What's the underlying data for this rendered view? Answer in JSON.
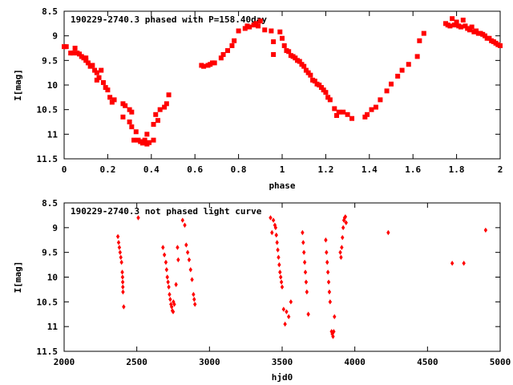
{
  "chart_data": [
    {
      "type": "scatter",
      "title": "190229-2740.3 phased with P=158.40day",
      "xlabel": "phase",
      "ylabel": "I[mag]",
      "xlim": [
        0,
        2
      ],
      "ylim": [
        11.5,
        8.5
      ],
      "y_inverted": true,
      "grid": false,
      "xticks": [
        "0",
        "0.2",
        "0.4",
        "0.6",
        "0.8",
        "1",
        "1.2",
        "1.4",
        "1.6",
        "1.8",
        "2"
      ],
      "yticks": [
        "8.5",
        "9",
        "9.5",
        "10",
        "10.5",
        "11",
        "11.5"
      ],
      "color": "#ff0000",
      "marker": "square",
      "points": [
        [
          0.0,
          9.22
        ],
        [
          0.01,
          9.22
        ],
        [
          0.03,
          9.35
        ],
        [
          0.04,
          9.35
        ],
        [
          0.05,
          9.25
        ],
        [
          0.06,
          9.35
        ],
        [
          0.07,
          9.37
        ],
        [
          0.08,
          9.42
        ],
        [
          0.09,
          9.45
        ],
        [
          0.1,
          9.5
        ],
        [
          0.1,
          9.45
        ],
        [
          0.11,
          9.55
        ],
        [
          0.12,
          9.62
        ],
        [
          0.13,
          9.6
        ],
        [
          0.14,
          9.7
        ],
        [
          0.15,
          9.75
        ],
        [
          0.16,
          9.85
        ],
        [
          0.15,
          9.9
        ],
        [
          0.17,
          9.7
        ],
        [
          0.18,
          9.95
        ],
        [
          0.19,
          10.05
        ],
        [
          0.2,
          10.1
        ],
        [
          0.21,
          10.25
        ],
        [
          0.22,
          10.35
        ],
        [
          0.23,
          10.3
        ],
        [
          0.27,
          10.38
        ],
        [
          0.28,
          10.42
        ],
        [
          0.3,
          10.5
        ],
        [
          0.31,
          10.55
        ],
        [
          0.27,
          10.65
        ],
        [
          0.3,
          10.75
        ],
        [
          0.31,
          10.85
        ],
        [
          0.32,
          11.12
        ],
        [
          0.34,
          11.12
        ],
        [
          0.35,
          11.15
        ],
        [
          0.36,
          11.18
        ],
        [
          0.37,
          11.12
        ],
        [
          0.38,
          11.2
        ],
        [
          0.39,
          11.17
        ],
        [
          0.41,
          11.12
        ],
        [
          0.33,
          10.95
        ],
        [
          0.38,
          11.0
        ],
        [
          0.41,
          10.8
        ],
        [
          0.42,
          10.6
        ],
        [
          0.43,
          10.72
        ],
        [
          0.44,
          10.5
        ],
        [
          0.46,
          10.45
        ],
        [
          0.47,
          10.38
        ],
        [
          0.48,
          10.2
        ],
        [
          0.63,
          9.6
        ],
        [
          0.64,
          9.62
        ],
        [
          0.66,
          9.6
        ],
        [
          0.67,
          9.58
        ],
        [
          0.68,
          9.55
        ],
        [
          0.69,
          9.55
        ],
        [
          0.72,
          9.45
        ],
        [
          0.73,
          9.38
        ],
        [
          0.75,
          9.3
        ],
        [
          0.77,
          9.2
        ],
        [
          0.78,
          9.1
        ],
        [
          0.8,
          8.9
        ],
        [
          0.83,
          8.85
        ],
        [
          0.84,
          8.8
        ],
        [
          0.85,
          8.82
        ],
        [
          0.87,
          8.78
        ],
        [
          0.88,
          8.75
        ],
        [
          0.89,
          8.8
        ],
        [
          0.9,
          8.7
        ],
        [
          0.92,
          8.88
        ],
        [
          0.95,
          8.9
        ],
        [
          0.96,
          9.12
        ],
        [
          0.96,
          9.38
        ],
        [
          0.99,
          8.92
        ],
        [
          1.0,
          9.05
        ],
        [
          1.01,
          9.2
        ],
        [
          1.02,
          9.3
        ],
        [
          1.03,
          9.32
        ],
        [
          1.04,
          9.4
        ],
        [
          1.05,
          9.42
        ],
        [
          1.06,
          9.45
        ],
        [
          1.07,
          9.5
        ],
        [
          1.08,
          9.52
        ],
        [
          1.09,
          9.58
        ],
        [
          1.1,
          9.62
        ],
        [
          1.11,
          9.7
        ],
        [
          1.12,
          9.75
        ],
        [
          1.13,
          9.8
        ],
        [
          1.14,
          9.9
        ],
        [
          1.15,
          9.92
        ],
        [
          1.16,
          9.98
        ],
        [
          1.17,
          10.0
        ],
        [
          1.18,
          10.05
        ],
        [
          1.19,
          10.1
        ],
        [
          1.2,
          10.15
        ],
        [
          1.21,
          10.25
        ],
        [
          1.22,
          10.3
        ],
        [
          1.24,
          10.48
        ],
        [
          1.25,
          10.62
        ],
        [
          1.26,
          10.55
        ],
        [
          1.28,
          10.55
        ],
        [
          1.3,
          10.6
        ],
        [
          1.32,
          10.68
        ],
        [
          1.38,
          10.65
        ],
        [
          1.39,
          10.6
        ],
        [
          1.41,
          10.5
        ],
        [
          1.43,
          10.45
        ],
        [
          1.45,
          10.3
        ],
        [
          1.48,
          10.12
        ],
        [
          1.5,
          9.98
        ],
        [
          1.53,
          9.82
        ],
        [
          1.55,
          9.7
        ],
        [
          1.58,
          9.58
        ],
        [
          1.62,
          9.42
        ],
        [
          1.63,
          9.1
        ],
        [
          1.65,
          8.95
        ],
        [
          1.75,
          8.75
        ],
        [
          1.76,
          8.78
        ],
        [
          1.77,
          8.8
        ],
        [
          1.78,
          8.65
        ],
        [
          1.79,
          8.78
        ],
        [
          1.8,
          8.72
        ],
        [
          1.81,
          8.8
        ],
        [
          1.82,
          8.82
        ],
        [
          1.83,
          8.68
        ],
        [
          1.84,
          8.8
        ],
        [
          1.85,
          8.85
        ],
        [
          1.86,
          8.88
        ],
        [
          1.87,
          8.82
        ],
        [
          1.88,
          8.92
        ],
        [
          1.89,
          8.9
        ],
        [
          1.9,
          8.95
        ],
        [
          1.91,
          8.95
        ],
        [
          1.92,
          8.97
        ],
        [
          1.93,
          9.0
        ],
        [
          1.94,
          9.05
        ],
        [
          1.95,
          9.05
        ],
        [
          1.96,
          9.1
        ],
        [
          1.97,
          9.12
        ],
        [
          1.98,
          9.15
        ],
        [
          1.99,
          9.18
        ],
        [
          2.0,
          9.2
        ]
      ]
    },
    {
      "type": "scatter",
      "title": "190229-2740.3 not phased light curve",
      "xlabel": "hjd0",
      "ylabel": "I[mag]",
      "xlim": [
        2000,
        5000
      ],
      "ylim": [
        11.5,
        8.5
      ],
      "y_inverted": true,
      "grid": false,
      "xticks": [
        "2000",
        "2500",
        "3000",
        "3500",
        "4000",
        "4500",
        "5000"
      ],
      "yticks": [
        "8.5",
        "9",
        "9.5",
        "10",
        "10.5",
        "11",
        "11.5"
      ],
      "color": "#ff0000",
      "marker": "diamond",
      "points": [
        [
          2370,
          9.18
        ],
        [
          2375,
          9.3
        ],
        [
          2380,
          9.4
        ],
        [
          2385,
          9.5
        ],
        [
          2390,
          9.6
        ],
        [
          2395,
          9.7
        ],
        [
          2400,
          9.9
        ],
        [
          2402,
          10.0
        ],
        [
          2403,
          10.1
        ],
        [
          2404,
          10.2
        ],
        [
          2405,
          10.3
        ],
        [
          2410,
          10.6
        ],
        [
          2510,
          8.8
        ],
        [
          2680,
          9.4
        ],
        [
          2690,
          9.55
        ],
        [
          2700,
          9.7
        ],
        [
          2705,
          9.85
        ],
        [
          2710,
          10.0
        ],
        [
          2715,
          10.1
        ],
        [
          2720,
          10.2
        ],
        [
          2725,
          10.35
        ],
        [
          2730,
          10.45
        ],
        [
          2735,
          10.55
        ],
        [
          2740,
          10.6
        ],
        [
          2745,
          10.68
        ],
        [
          2750,
          10.7
        ],
        [
          2752,
          10.5
        ],
        [
          2758,
          10.55
        ],
        [
          2770,
          10.15
        ],
        [
          2780,
          9.4
        ],
        [
          2785,
          9.65
        ],
        [
          2815,
          8.85
        ],
        [
          2830,
          8.95
        ],
        [
          2840,
          9.35
        ],
        [
          2850,
          9.5
        ],
        [
          2860,
          9.65
        ],
        [
          2870,
          9.85
        ],
        [
          2880,
          10.05
        ],
        [
          2890,
          10.35
        ],
        [
          2895,
          10.45
        ],
        [
          2900,
          10.55
        ],
        [
          3420,
          8.8
        ],
        [
          3430,
          9.1
        ],
        [
          3440,
          8.85
        ],
        [
          3450,
          8.95
        ],
        [
          3455,
          9.0
        ],
        [
          3460,
          9.15
        ],
        [
          3465,
          9.3
        ],
        [
          3470,
          9.45
        ],
        [
          3475,
          9.6
        ],
        [
          3480,
          9.75
        ],
        [
          3485,
          9.9
        ],
        [
          3490,
          10.0
        ],
        [
          3495,
          10.1
        ],
        [
          3500,
          10.2
        ],
        [
          3510,
          10.65
        ],
        [
          3520,
          10.95
        ],
        [
          3530,
          10.7
        ],
        [
          3545,
          10.8
        ],
        [
          3560,
          10.5
        ],
        [
          3640,
          9.1
        ],
        [
          3645,
          9.3
        ],
        [
          3650,
          9.5
        ],
        [
          3655,
          9.7
        ],
        [
          3660,
          9.9
        ],
        [
          3665,
          10.1
        ],
        [
          3670,
          10.3
        ],
        [
          3680,
          10.75
        ],
        [
          3800,
          9.25
        ],
        [
          3805,
          9.5
        ],
        [
          3810,
          9.7
        ],
        [
          3815,
          9.9
        ],
        [
          3820,
          10.1
        ],
        [
          3825,
          10.3
        ],
        [
          3830,
          10.5
        ],
        [
          3840,
          11.1
        ],
        [
          3845,
          11.15
        ],
        [
          3850,
          11.2
        ],
        [
          3855,
          11.1
        ],
        [
          3860,
          10.8
        ],
        [
          3900,
          9.5
        ],
        [
          3905,
          9.6
        ],
        [
          3910,
          9.4
        ],
        [
          3915,
          9.2
        ],
        [
          3920,
          9.0
        ],
        [
          3925,
          8.85
        ],
        [
          3930,
          8.8
        ],
        [
          3935,
          8.78
        ],
        [
          3940,
          8.9
        ],
        [
          4230,
          9.1
        ],
        [
          4670,
          9.72
        ],
        [
          4750,
          9.72
        ],
        [
          4900,
          9.05
        ]
      ]
    }
  ]
}
